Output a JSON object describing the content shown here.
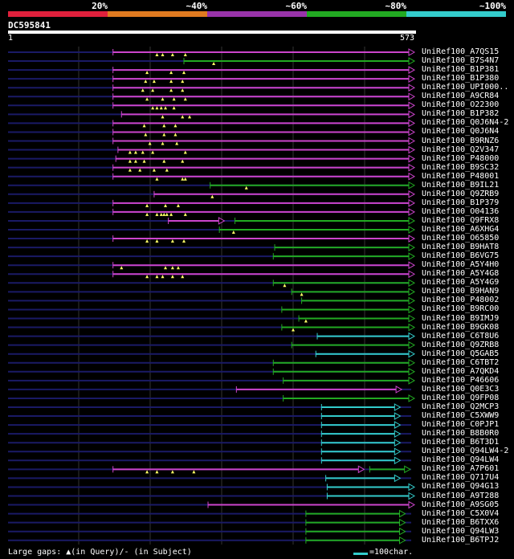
{
  "legend": {
    "labels": [
      "20%",
      "~40%",
      "~60%",
      "~80%",
      "~100%"
    ],
    "colors": [
      "#e0203c",
      "#e07a20",
      "#9933aa",
      "#22aa22",
      "#33cccc"
    ]
  },
  "query": {
    "id": "DC595841",
    "start": "1",
    "end": "573"
  },
  "colors": {
    "background": "#000000",
    "line": "#1a1a66",
    "gridline": "#333333",
    "gap_marker": "#ffff66",
    "magenta": "#cc44cc",
    "green": "#22aa22",
    "cyan": "#33cccc"
  },
  "hits": [
    {
      "name": "UniRef100_A7QS15",
      "color": "magenta",
      "start": 148,
      "end": 573,
      "gaps": [
        210,
        218,
        232,
        250
      ]
    },
    {
      "name": "UniRef100_B7S4N7",
      "color": "green",
      "start": 248,
      "end": 573,
      "gaps": [
        290
      ]
    },
    {
      "name": "UniRef100_B1P381",
      "color": "magenta",
      "start": 148,
      "end": 573,
      "gaps": [
        196,
        230,
        248
      ]
    },
    {
      "name": "UniRef100_B1P380",
      "color": "magenta",
      "start": 148,
      "end": 573,
      "gaps": [
        194,
        206,
        230,
        246
      ]
    },
    {
      "name": "UniRef100_UPI000..",
      "color": "magenta",
      "start": 148,
      "end": 573,
      "gaps": [
        190,
        204,
        230,
        246
      ]
    },
    {
      "name": "UniRef100_A9CR84",
      "color": "magenta",
      "start": 148,
      "end": 573,
      "gaps": [
        196,
        218,
        234,
        250
      ]
    },
    {
      "name": "UniRef100_O22300",
      "color": "magenta",
      "start": 148,
      "end": 573,
      "gaps": [
        204,
        210,
        216,
        222,
        234
      ]
    },
    {
      "name": "UniRef100_B1P382",
      "color": "magenta",
      "start": 160,
      "end": 573,
      "gaps": [
        218,
        246,
        256
      ]
    },
    {
      "name": "UniRef100_Q0J6N4-2",
      "color": "magenta",
      "start": 148,
      "end": 573,
      "gaps": [
        192,
        220,
        236
      ]
    },
    {
      "name": "UniRef100_Q0J6N4",
      "color": "magenta",
      "start": 148,
      "end": 573,
      "gaps": [
        194,
        220,
        236
      ]
    },
    {
      "name": "UniRef100_B9RNZ6",
      "color": "magenta",
      "start": 148,
      "end": 573,
      "gaps": [
        200,
        218,
        238
      ]
    },
    {
      "name": "UniRef100_Q2V347",
      "color": "magenta",
      "start": 155,
      "end": 573,
      "gaps": [
        172,
        180,
        190,
        204,
        250
      ]
    },
    {
      "name": "UniRef100_P48000",
      "color": "magenta",
      "start": 152,
      "end": 573,
      "gaps": [
        172,
        180,
        192,
        220,
        246
      ]
    },
    {
      "name": "UniRef100_B9SC32",
      "color": "magenta",
      "start": 148,
      "end": 573,
      "gaps": [
        172,
        186,
        206,
        224
      ]
    },
    {
      "name": "UniRef100_P48001",
      "color": "magenta",
      "start": 148,
      "end": 573,
      "gaps": [
        210,
        246,
        250
      ]
    },
    {
      "name": "UniRef100_B9IL21",
      "color": "green",
      "start": 285,
      "end": 573,
      "gaps": [
        336
      ]
    },
    {
      "name": "UniRef100_Q9ZRB9",
      "color": "magenta",
      "start": 206,
      "end": 573,
      "gaps": [
        288
      ]
    },
    {
      "name": "UniRef100_B1P379",
      "color": "magenta",
      "start": 148,
      "end": 573,
      "gaps": [
        196,
        222,
        240
      ]
    },
    {
      "name": "UniRef100_O04136",
      "color": "magenta",
      "start": 148,
      "end": 573,
      "gaps": [
        196,
        210,
        216,
        220,
        224,
        230,
        250
      ]
    },
    {
      "name": "UniRef100_Q9FRX8",
      "color": "magenta",
      "start": 226,
      "end": 305,
      "color2": "green",
      "start2": 320,
      "end2": 573,
      "gaps": []
    },
    {
      "name": "UniRef100_A6XHG4",
      "color": "green",
      "start": 298,
      "end": 573,
      "gaps": [
        318
      ]
    },
    {
      "name": "UniRef100_O65850",
      "color": "magenta",
      "start": 148,
      "end": 573,
      "gaps": [
        196,
        210,
        232,
        248
      ]
    },
    {
      "name": "UniRef100_B9HAT8",
      "color": "green",
      "start": 376,
      "end": 573,
      "gaps": []
    },
    {
      "name": "UniRef100_B6VG75",
      "color": "green",
      "start": 374,
      "end": 573,
      "gaps": []
    },
    {
      "name": "UniRef100_A5Y4H0",
      "color": "magenta",
      "start": 148,
      "end": 573,
      "gaps": [
        160,
        222,
        232,
        240
      ]
    },
    {
      "name": "UniRef100_A5Y4G8",
      "color": "magenta",
      "start": 148,
      "end": 573,
      "gaps": [
        196,
        210,
        218,
        232,
        246
      ]
    },
    {
      "name": "UniRef100_A5Y4G9",
      "color": "green",
      "start": 374,
      "end": 573,
      "gaps": [
        390
      ]
    },
    {
      "name": "UniRef100_B9HAN9",
      "color": "green",
      "start": 400,
      "end": 573,
      "gaps": [
        414
      ]
    },
    {
      "name": "UniRef100_P48002",
      "color": "green",
      "start": 414,
      "end": 573,
      "gaps": []
    },
    {
      "name": "UniRef100_B9RC00",
      "color": "green",
      "start": 386,
      "end": 573,
      "gaps": []
    },
    {
      "name": "UniRef100_B9IMJ9",
      "color": "green",
      "start": 410,
      "end": 573,
      "gaps": [
        420
      ]
    },
    {
      "name": "UniRef100_B9GK08",
      "color": "green",
      "start": 386,
      "end": 573,
      "gaps": [
        402
      ]
    },
    {
      "name": "UniRef100_C6T8U6",
      "color": "cyan",
      "start": 436,
      "end": 573,
      "gaps": []
    },
    {
      "name": "UniRef100_Q9ZRB8",
      "color": "green",
      "start": 400,
      "end": 573,
      "gaps": []
    },
    {
      "name": "UniRef100_Q5GAB5",
      "color": "cyan",
      "start": 434,
      "end": 573,
      "gaps": []
    },
    {
      "name": "UniRef100_C6TBT2",
      "color": "green",
      "start": 374,
      "end": 573,
      "gaps": []
    },
    {
      "name": "UniRef100_A7QKD4",
      "color": "green",
      "start": 374,
      "end": 573,
      "gaps": []
    },
    {
      "name": "UniRef100_P46606",
      "color": "green",
      "start": 388,
      "end": 573,
      "gaps": []
    },
    {
      "name": "UniRef100_Q0E3C3",
      "color": "magenta",
      "start": 322,
      "end": 555,
      "gaps": []
    },
    {
      "name": "UniRef100_Q9FP08",
      "color": "green",
      "start": 388,
      "end": 573,
      "gaps": []
    },
    {
      "name": "UniRef100_Q2MCP3",
      "color": "cyan",
      "start": 442,
      "end": 553,
      "gaps": []
    },
    {
      "name": "UniRef100_C5XWW9",
      "color": "cyan",
      "start": 442,
      "end": 553,
      "gaps": []
    },
    {
      "name": "UniRef100_C0PJP1",
      "color": "cyan",
      "start": 442,
      "end": 553,
      "gaps": []
    },
    {
      "name": "UniRef100_B8B0R0",
      "color": "cyan",
      "start": 442,
      "end": 553,
      "gaps": []
    },
    {
      "name": "UniRef100_B6T3D1",
      "color": "cyan",
      "start": 442,
      "end": 553,
      "gaps": []
    },
    {
      "name": "UniRef100_Q94LW4-2",
      "color": "cyan",
      "start": 442,
      "end": 553,
      "gaps": []
    },
    {
      "name": "UniRef100_Q94LW4",
      "color": "cyan",
      "start": 442,
      "end": 553,
      "gaps": []
    },
    {
      "name": "UniRef100_A7P601",
      "color": "magenta",
      "start": 148,
      "end": 502,
      "color2": "green",
      "start2": 510,
      "end2": 567,
      "gaps": [
        196,
        210,
        232,
        262
      ]
    },
    {
      "name": "UniRef100_Q717U4",
      "color": "cyan",
      "start": 448,
      "end": 553,
      "gaps": []
    },
    {
      "name": "UniRef100_Q94G13",
      "color": "cyan",
      "start": 450,
      "end": 573,
      "gaps": []
    },
    {
      "name": "UniRef100_A9T288",
      "color": "cyan",
      "start": 450,
      "end": 573,
      "gaps": []
    },
    {
      "name": "UniRef100_A9SG05",
      "color": "magenta",
      "start": 282,
      "end": 573,
      "gaps": []
    },
    {
      "name": "UniRef100_C5X0V4",
      "color": "green",
      "start": 420,
      "end": 560,
      "gaps": []
    },
    {
      "name": "UniRef100_B6TXX6",
      "color": "green",
      "start": 420,
      "end": 560,
      "gaps": []
    },
    {
      "name": "UniRef100_Q94LW3",
      "color": "green",
      "start": 420,
      "end": 560,
      "gaps": []
    },
    {
      "name": "UniRef100_B6TPJ2",
      "color": "green",
      "start": 420,
      "end": 560,
      "gaps": []
    }
  ],
  "footer": {
    "note": "Large gaps: ▲(in Query)/- (in Subject)",
    "scale": "=100char."
  }
}
